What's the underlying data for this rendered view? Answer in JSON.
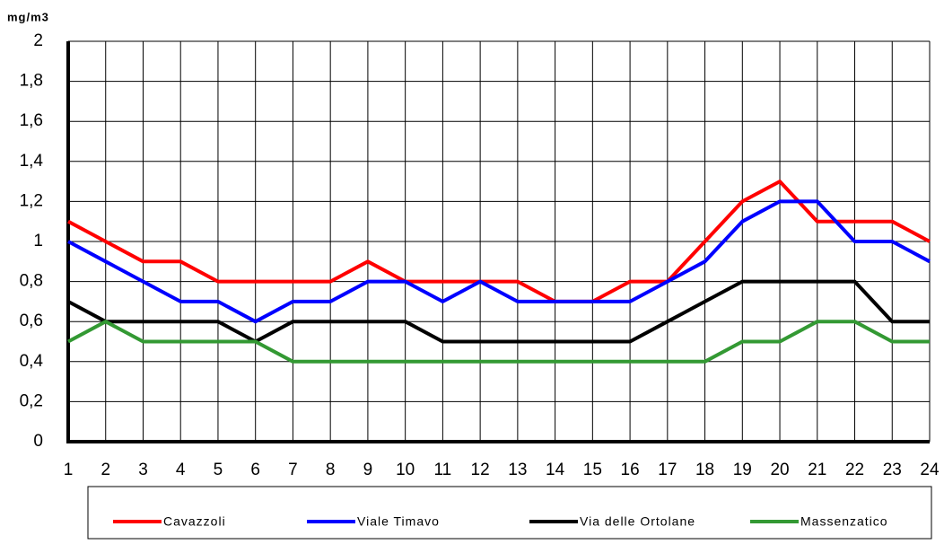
{
  "chart_data": {
    "type": "line",
    "ylabel": "mg/m3",
    "x": [
      1,
      2,
      3,
      4,
      5,
      6,
      7,
      8,
      9,
      10,
      11,
      12,
      13,
      14,
      15,
      16,
      17,
      18,
      19,
      20,
      21,
      22,
      23,
      24
    ],
    "xlim": [
      1,
      24
    ],
    "xticks": [
      1,
      2,
      3,
      4,
      5,
      6,
      7,
      8,
      9,
      10,
      11,
      12,
      13,
      14,
      15,
      16,
      17,
      18,
      19,
      20,
      21,
      22,
      23,
      24
    ],
    "ylim": [
      0,
      2
    ],
    "yticks": [
      0,
      {
        "value": 0.2,
        "label": "0,2"
      },
      {
        "value": 0.4,
        "label": "0,4"
      },
      {
        "value": 0.6,
        "label": "0,6"
      },
      {
        "value": 0.8,
        "label": "0,8"
      },
      1,
      {
        "value": 1.2,
        "label": "1,2"
      },
      {
        "value": 1.4,
        "label": "1,4"
      },
      {
        "value": 1.6,
        "label": "1,6"
      },
      {
        "value": 1.8,
        "label": "1,8"
      },
      2
    ],
    "grid": true,
    "legend": "bottom",
    "series": [
      {
        "name": "Cavazzoli",
        "color": "#ff0000",
        "values": [
          1.1,
          1.0,
          0.9,
          0.9,
          0.8,
          0.8,
          0.8,
          0.8,
          0.9,
          0.8,
          0.8,
          0.8,
          0.8,
          0.7,
          0.7,
          0.8,
          0.8,
          1.0,
          1.2,
          1.3,
          1.1,
          1.1,
          1.1,
          1.0
        ]
      },
      {
        "name": "Viale Timavo",
        "color": "#0000ff",
        "values": [
          1.0,
          0.9,
          0.8,
          0.7,
          0.7,
          0.6,
          0.7,
          0.7,
          0.8,
          0.8,
          0.7,
          0.8,
          0.7,
          0.7,
          0.7,
          0.7,
          0.8,
          0.9,
          1.1,
          1.2,
          1.2,
          1.0,
          1.0,
          0.9
        ]
      },
      {
        "name": "Via delle Ortolane",
        "color": "#000000",
        "values": [
          0.7,
          0.6,
          0.6,
          0.6,
          0.6,
          0.5,
          0.6,
          0.6,
          0.6,
          0.6,
          0.5,
          0.5,
          0.5,
          0.5,
          0.5,
          0.5,
          0.6,
          0.7,
          0.8,
          0.8,
          0.8,
          0.8,
          0.6,
          0.6
        ]
      },
      {
        "name": "Massenzatico",
        "color": "#339933",
        "values": [
          0.5,
          0.6,
          0.5,
          0.5,
          0.5,
          0.5,
          0.4,
          0.4,
          0.4,
          0.4,
          0.4,
          0.4,
          0.4,
          0.4,
          0.4,
          0.4,
          0.4,
          0.4,
          0.5,
          0.5,
          0.6,
          0.6,
          0.5,
          0.5
        ]
      }
    ]
  }
}
